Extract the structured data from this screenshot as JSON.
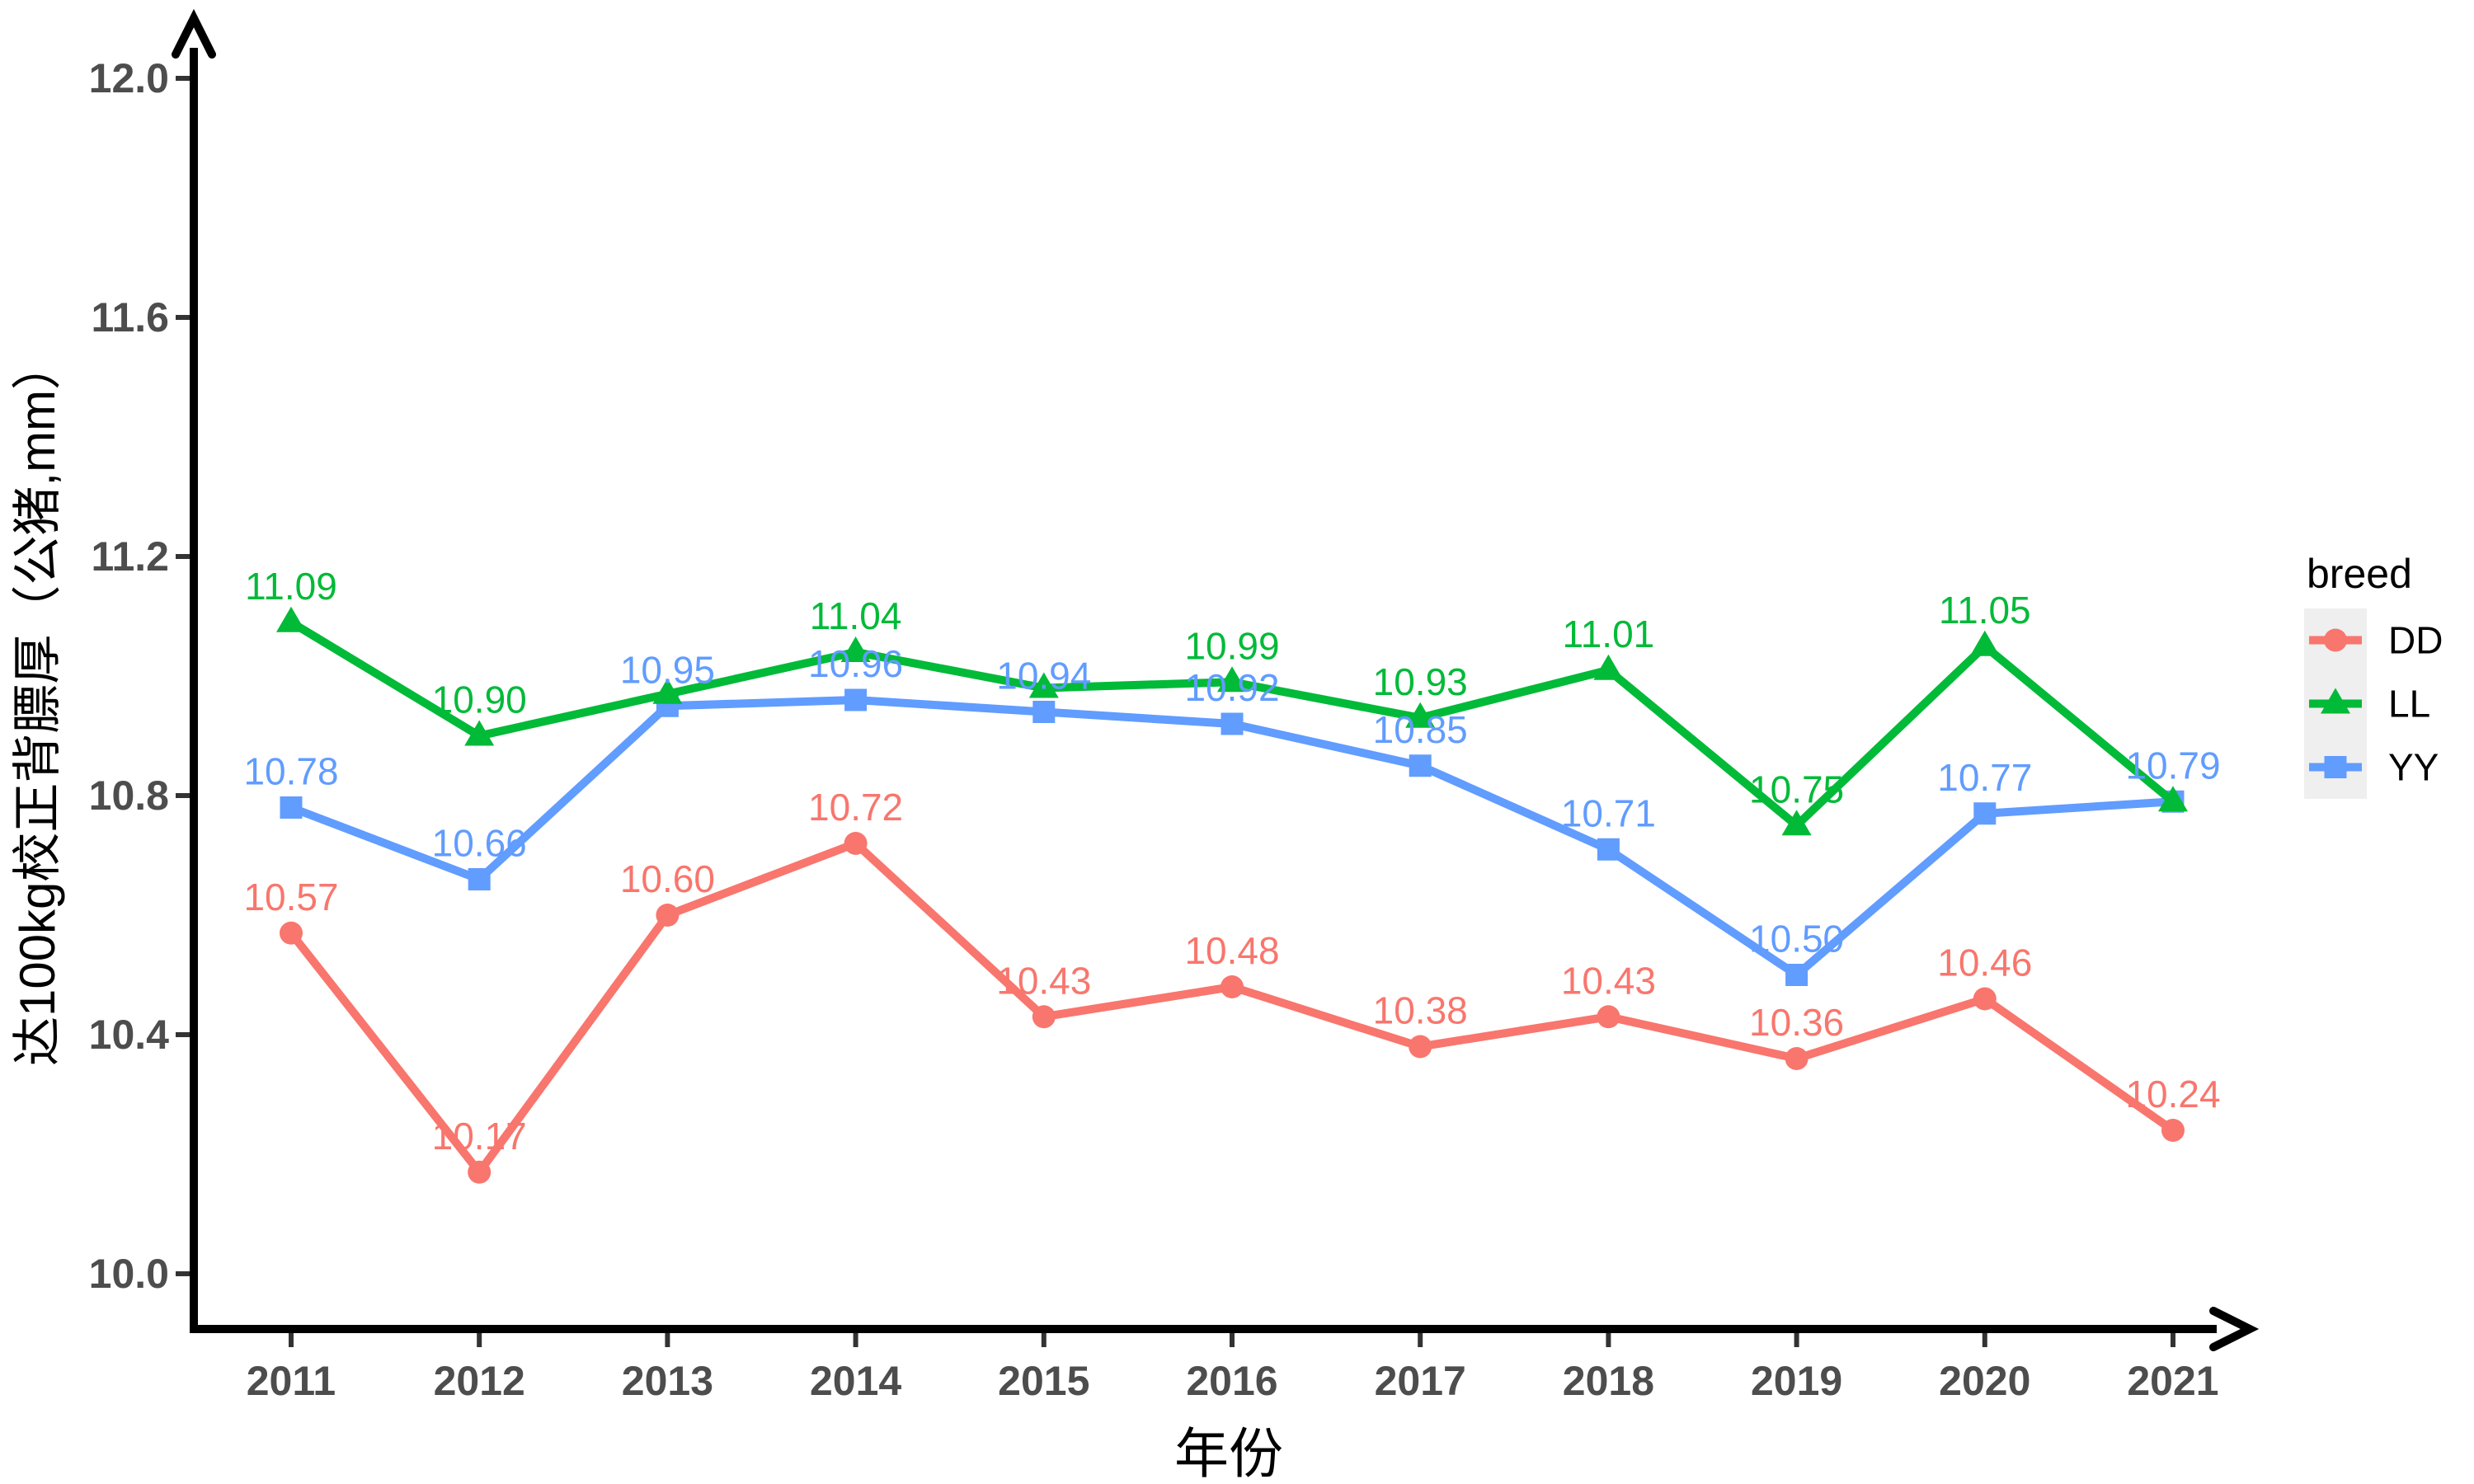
{
  "chart_data": {
    "type": "line",
    "title": "",
    "xlabel": "年份",
    "ylabel": "达100kg校正背膘厚（公猪,mm）",
    "categories": [
      "2011",
      "2012",
      "2013",
      "2014",
      "2015",
      "2016",
      "2017",
      "2018",
      "2019",
      "2020",
      "2021"
    ],
    "ylim": [
      10.0,
      12.0
    ],
    "yticks": [
      "12.0",
      "11.6",
      "11.2",
      "10.8",
      "10.4",
      "10.0"
    ],
    "grid": false,
    "legend": {
      "title": "breed",
      "position": "right",
      "key_fill": "#EFEFEF",
      "entries": [
        "DD",
        "LL",
        "YY"
      ]
    },
    "axis_color": "#000000",
    "tick_label_color": "#4D4D4D",
    "series": [
      {
        "name": "DD",
        "color": "#F8766D",
        "marker": "circle",
        "values": [
          10.57,
          10.17,
          10.6,
          10.72,
          10.43,
          10.48,
          10.38,
          10.43,
          10.36,
          10.46,
          10.24
        ],
        "labels": [
          "10.57",
          "10.17",
          "10.60",
          "10.72",
          "10.43",
          "10.48",
          "10.38",
          "10.43",
          "10.36",
          "10.46",
          "10.24"
        ]
      },
      {
        "name": "LL",
        "color": "#00BA38",
        "marker": "triangle",
        "values": [
          11.09,
          10.9,
          10.97,
          11.04,
          10.98,
          10.99,
          10.93,
          11.01,
          10.75,
          11.05,
          10.79
        ],
        "labels": [
          "11.09",
          "10.90",
          "",
          "11.04",
          "",
          "10.99",
          "10.93",
          "11.01",
          "10.75",
          "11.05",
          ""
        ]
      },
      {
        "name": "YY",
        "color": "#619CFF",
        "marker": "square",
        "values": [
          10.78,
          10.66,
          10.95,
          10.96,
          10.94,
          10.92,
          10.85,
          10.71,
          10.5,
          10.77,
          10.79
        ],
        "labels": [
          "10.78",
          "10.66",
          "10.95",
          "10.96",
          "10.94",
          "10.92",
          "10.85",
          "10.71",
          "10.50",
          "10.77",
          "10.79"
        ]
      }
    ]
  }
}
